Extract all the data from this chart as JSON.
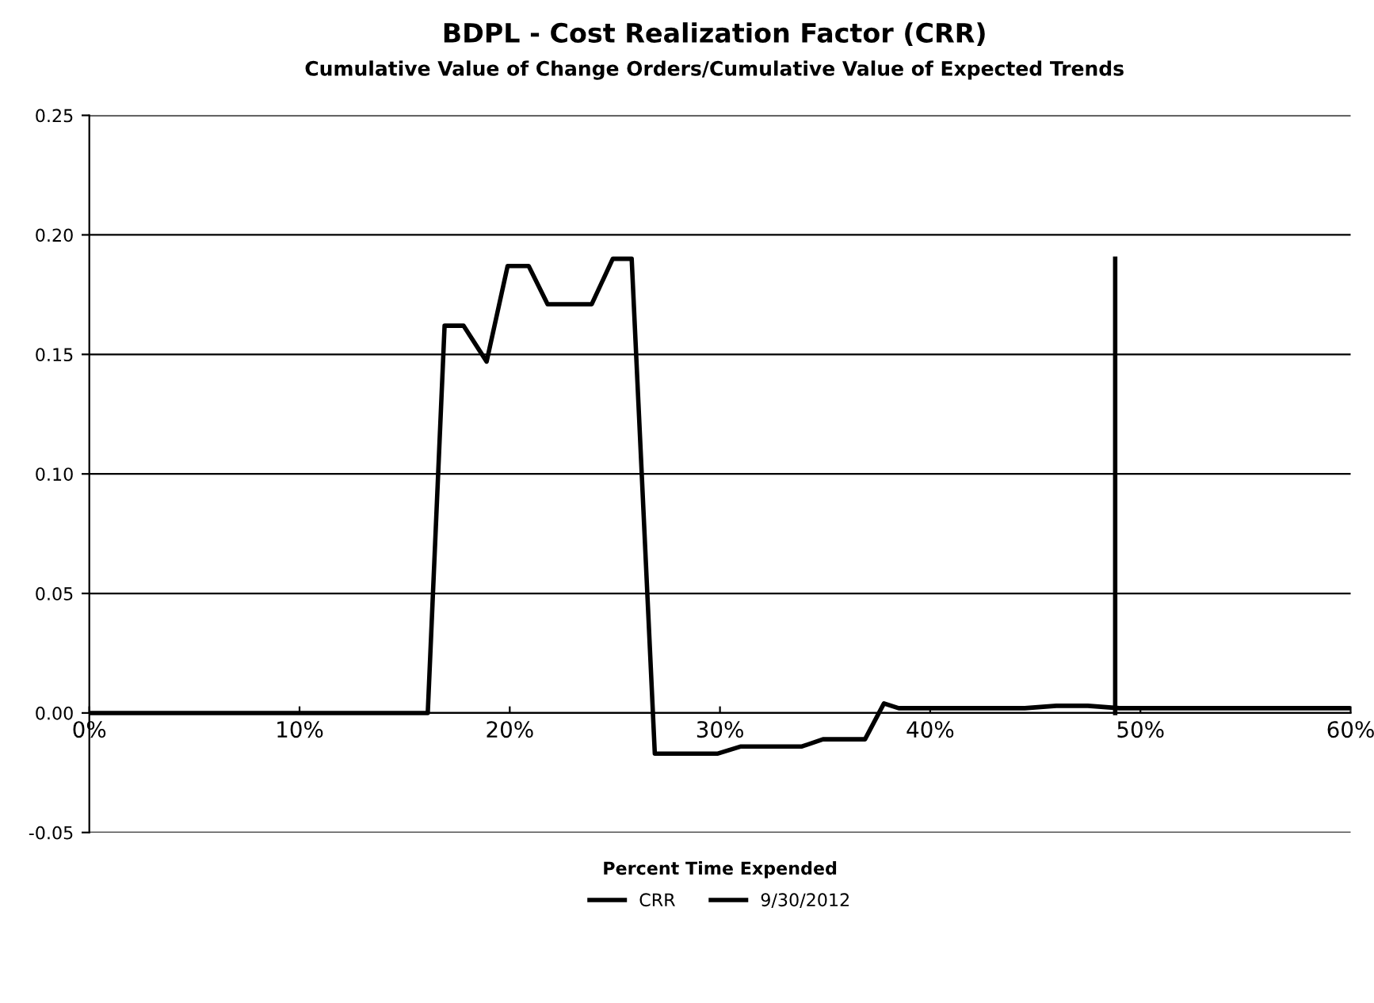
{
  "chart_data": {
    "type": "line",
    "title": "BDPL - Cost Realization Factor (CRR)",
    "subtitle": "Cumulative Value of Change Orders/Cumulative Value of Expected Trends",
    "xlabel": "Percent Time Expended",
    "series": [
      {
        "name": "CRR",
        "color": "#000000",
        "x": [
          0,
          16.1,
          16.9,
          17.8,
          18.9,
          19.9,
          20.9,
          21.8,
          23.9,
          24.9,
          25.8,
          26.9,
          29.9,
          31.0,
          33.9,
          34.9,
          36.9,
          37.8,
          38.5,
          42.5,
          44.5,
          46.0,
          47.5,
          49.0,
          60
        ],
        "values": [
          0,
          0,
          0.162,
          0.162,
          0.147,
          0.187,
          0.187,
          0.171,
          0.171,
          0.19,
          0.19,
          -0.017,
          -0.017,
          -0.014,
          -0.014,
          -0.011,
          -0.011,
          0.004,
          0.002,
          0.002,
          0.002,
          0.003,
          0.003,
          0.002,
          0.002
        ]
      },
      {
        "name": "9/30/2012",
        "color": "#000000",
        "x": [
          48.8,
          48.8
        ],
        "values": [
          0,
          0.19
        ]
      }
    ],
    "xlim": [
      0,
      60
    ],
    "xticks": [
      {
        "value": 0,
        "label": "0%"
      },
      {
        "value": 10,
        "label": "10%"
      },
      {
        "value": 20,
        "label": "20%"
      },
      {
        "value": 30,
        "label": "30%"
      },
      {
        "value": 40,
        "label": "40%"
      },
      {
        "value": 50,
        "label": "50%"
      },
      {
        "value": 60,
        "label": "60%"
      }
    ],
    "ylim": [
      -0.05,
      0.25
    ],
    "yticks": [
      {
        "value": -0.05,
        "label": "-0.05"
      },
      {
        "value": 0,
        "label": "0.00"
      },
      {
        "value": 0.05,
        "label": "0.05"
      },
      {
        "value": 0.1,
        "label": "0.10"
      },
      {
        "value": 0.15,
        "label": "0.15"
      },
      {
        "value": 0.2,
        "label": "0.20"
      },
      {
        "value": 0.25,
        "label": "0.25"
      }
    ],
    "grid": "y",
    "legend": "bottom",
    "line_style": "solid",
    "marker": "none"
  }
}
